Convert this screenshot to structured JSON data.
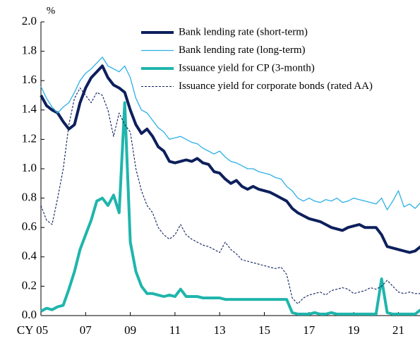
{
  "chart_data": {
    "type": "line",
    "y_label": "%",
    "x": [
      2005,
      2005.25,
      2005.5,
      2005.75,
      2006,
      2006.25,
      2006.5,
      2006.75,
      2007,
      2007.25,
      2007.5,
      2007.75,
      2008,
      2008.25,
      2008.5,
      2008.75,
      2009,
      2009.25,
      2009.5,
      2009.75,
      2010,
      2010.25,
      2010.5,
      2010.75,
      2011,
      2011.25,
      2011.5,
      2011.75,
      2012,
      2012.25,
      2012.5,
      2012.75,
      2013,
      2013.25,
      2013.5,
      2013.75,
      2014,
      2014.25,
      2014.5,
      2014.75,
      2015,
      2015.25,
      2015.5,
      2015.75,
      2016,
      2016.25,
      2016.5,
      2016.75,
      2017,
      2017.25,
      2017.5,
      2017.75,
      2018,
      2018.25,
      2018.5,
      2018.75,
      2019,
      2019.25,
      2019.5,
      2019.75,
      2020,
      2020.25,
      2020.5,
      2020.75,
      2021,
      2021.25,
      2021.5,
      2021.75,
      2022
    ],
    "series": [
      {
        "name": "Bank lending rate (short-term)",
        "color": "#0d1f5c",
        "width": 4,
        "dashed": false,
        "values": [
          1.5,
          1.43,
          1.4,
          1.38,
          1.32,
          1.27,
          1.3,
          1.45,
          1.55,
          1.62,
          1.66,
          1.7,
          1.62,
          1.57,
          1.55,
          1.52,
          1.4,
          1.3,
          1.24,
          1.27,
          1.22,
          1.15,
          1.12,
          1.05,
          1.04,
          1.05,
          1.06,
          1.05,
          1.07,
          1.04,
          1.03,
          0.98,
          0.97,
          0.93,
          0.9,
          0.92,
          0.88,
          0.86,
          0.88,
          0.86,
          0.85,
          0.84,
          0.82,
          0.8,
          0.78,
          0.73,
          0.7,
          0.68,
          0.66,
          0.65,
          0.64,
          0.62,
          0.6,
          0.59,
          0.58,
          0.6,
          0.61,
          0.62,
          0.6,
          0.6,
          0.6,
          0.55,
          0.47,
          0.46,
          0.45,
          0.44,
          0.43,
          0.44,
          0.47
        ]
      },
      {
        "name": "Bank lending rate (long-term)",
        "color": "#2bb0e6",
        "width": 1.3,
        "dashed": false,
        "values": [
          1.56,
          1.48,
          1.42,
          1.38,
          1.42,
          1.45,
          1.52,
          1.6,
          1.65,
          1.68,
          1.72,
          1.76,
          1.7,
          1.68,
          1.66,
          1.7,
          1.62,
          1.48,
          1.4,
          1.38,
          1.33,
          1.28,
          1.25,
          1.2,
          1.21,
          1.22,
          1.2,
          1.18,
          1.17,
          1.14,
          1.12,
          1.1,
          1.12,
          1.08,
          1.05,
          1.04,
          1.02,
          1.0,
          1.0,
          0.98,
          0.97,
          0.96,
          0.94,
          0.93,
          0.88,
          0.85,
          0.8,
          0.78,
          0.8,
          0.78,
          0.77,
          0.79,
          0.78,
          0.8,
          0.77,
          0.78,
          0.8,
          0.79,
          0.78,
          0.77,
          0.76,
          0.8,
          0.72,
          0.78,
          0.85,
          0.74,
          0.76,
          0.73,
          0.77
        ]
      },
      {
        "name": "Issuance yield for CP (3-month)",
        "color": "#1fb5ac",
        "width": 4,
        "dashed": false,
        "values": [
          0.03,
          0.05,
          0.04,
          0.06,
          0.07,
          0.18,
          0.3,
          0.45,
          0.55,
          0.65,
          0.78,
          0.8,
          0.75,
          0.82,
          0.7,
          1.45,
          0.5,
          0.3,
          0.2,
          0.15,
          0.15,
          0.14,
          0.13,
          0.14,
          0.13,
          0.18,
          0.13,
          0.13,
          0.13,
          0.12,
          0.12,
          0.12,
          0.12,
          0.11,
          0.11,
          0.11,
          0.11,
          0.11,
          0.11,
          0.11,
          0.11,
          0.11,
          0.11,
          0.11,
          0.11,
          0.02,
          0.01,
          0.01,
          0.01,
          0.02,
          0.01,
          0.01,
          0.02,
          0.01,
          0.01,
          0.01,
          0.01,
          0.01,
          0.01,
          0.01,
          0.01,
          0.25,
          0.02,
          0.01,
          0.01,
          0.01,
          0.01,
          0.01,
          0.04
        ]
      },
      {
        "name": "Issuance yield for corporate bonds (rated AA)",
        "color": "#0d1f5c",
        "width": 1.1,
        "dashed": true,
        "values": [
          0.75,
          0.65,
          0.62,
          0.8,
          1.0,
          1.3,
          1.48,
          1.55,
          1.5,
          1.45,
          1.52,
          1.5,
          1.4,
          1.22,
          1.38,
          1.3,
          1.25,
          1.0,
          0.85,
          0.75,
          0.7,
          0.6,
          0.55,
          0.52,
          0.55,
          0.62,
          0.55,
          0.52,
          0.5,
          0.48,
          0.47,
          0.45,
          0.43,
          0.5,
          0.45,
          0.42,
          0.38,
          0.37,
          0.36,
          0.35,
          0.34,
          0.33,
          0.32,
          0.33,
          0.28,
          0.12,
          0.08,
          0.12,
          0.14,
          0.15,
          0.16,
          0.14,
          0.17,
          0.18,
          0.19,
          0.18,
          0.15,
          0.16,
          0.17,
          0.19,
          0.18,
          0.2,
          0.24,
          0.2,
          0.16,
          0.15,
          0.16,
          0.15,
          0.15
        ]
      }
    ],
    "xlim": [
      2005,
      2022
    ],
    "xticks": [
      {
        "value": 2005,
        "label": "CY 05"
      },
      {
        "value": 2007,
        "label": "07"
      },
      {
        "value": 2009,
        "label": "09"
      },
      {
        "value": 2011,
        "label": "11"
      },
      {
        "value": 2013,
        "label": "13"
      },
      {
        "value": 2015,
        "label": "15"
      },
      {
        "value": 2017,
        "label": "17"
      },
      {
        "value": 2019,
        "label": "19"
      },
      {
        "value": 2021,
        "label": "21"
      }
    ],
    "ylim": [
      0,
      2
    ],
    "yticks": [
      {
        "value": 0,
        "label": "0.0"
      },
      0.2,
      0.4,
      0.6,
      0.8,
      {
        "value": 1,
        "label": "1.0"
      },
      1.2,
      1.4,
      1.6,
      1.8,
      {
        "value": 2,
        "label": "2.0"
      }
    ],
    "legend": "top-right"
  }
}
